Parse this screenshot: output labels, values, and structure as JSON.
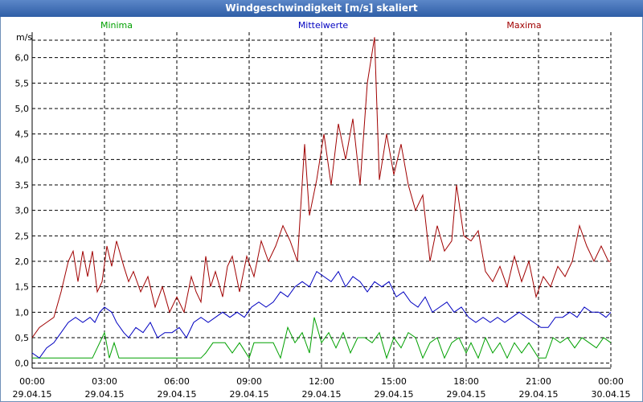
{
  "window": {
    "title": "Windgeschwindigkeit [m/s] skaliert"
  },
  "chart_data": {
    "type": "line",
    "title": "Windgeschwindigkeit [m/s] skaliert",
    "ylabel": "m/s",
    "ylim": [
      -0.1,
      6.5
    ],
    "xlim_hours": [
      0,
      24
    ],
    "y_ticks": [
      "0,0",
      "0,5",
      "1,0",
      "1,5",
      "2,0",
      "2,5",
      "3,0",
      "3,5",
      "4,0",
      "4,5",
      "5,0",
      "5,5",
      "6,0"
    ],
    "x_ticks": [
      {
        "time": "00:00",
        "date": "29.04.15"
      },
      {
        "time": "03:00",
        "date": "29.04.15"
      },
      {
        "time": "06:00",
        "date": "29.04.15"
      },
      {
        "time": "09:00",
        "date": "29.04.15"
      },
      {
        "time": "12:00",
        "date": "29.04.15"
      },
      {
        "time": "15:00",
        "date": "29.04.15"
      },
      {
        "time": "18:00",
        "date": "29.04.15"
      },
      {
        "time": "21:00",
        "date": "29.04.15"
      },
      {
        "time": "00:00",
        "date": "30.04.15"
      }
    ],
    "grid": true,
    "legend_position": "top",
    "colors": {
      "Minima": "#00a000",
      "Mittelwerte": "#0000c0",
      "Maxima": "#a00000"
    },
    "series": [
      {
        "name": "Minima",
        "points": [
          [
            0,
            0.1
          ],
          [
            0.5,
            0.1
          ],
          [
            1,
            0.1
          ],
          [
            1.5,
            0.1
          ],
          [
            2,
            0.1
          ],
          [
            2.5,
            0.1
          ],
          [
            2.7,
            0.3
          ],
          [
            3,
            0.6
          ],
          [
            3.2,
            0.1
          ],
          [
            3.4,
            0.4
          ],
          [
            3.6,
            0.1
          ],
          [
            4,
            0.1
          ],
          [
            5,
            0.1
          ],
          [
            6,
            0.1
          ],
          [
            7,
            0.1
          ],
          [
            7.2,
            0.2
          ],
          [
            7.5,
            0.4
          ],
          [
            8,
            0.4
          ],
          [
            8.3,
            0.2
          ],
          [
            8.6,
            0.4
          ],
          [
            9,
            0.1
          ],
          [
            9.2,
            0.4
          ],
          [
            9.6,
            0.4
          ],
          [
            10,
            0.4
          ],
          [
            10.3,
            0.1
          ],
          [
            10.6,
            0.7
          ],
          [
            10.9,
            0.4
          ],
          [
            11.2,
            0.6
          ],
          [
            11.5,
            0.2
          ],
          [
            11.7,
            0.9
          ],
          [
            12,
            0.4
          ],
          [
            12.3,
            0.6
          ],
          [
            12.6,
            0.3
          ],
          [
            12.9,
            0.6
          ],
          [
            13.2,
            0.2
          ],
          [
            13.5,
            0.5
          ],
          [
            13.8,
            0.5
          ],
          [
            14.1,
            0.4
          ],
          [
            14.4,
            0.6
          ],
          [
            14.7,
            0.1
          ],
          [
            15,
            0.5
          ],
          [
            15.3,
            0.3
          ],
          [
            15.6,
            0.6
          ],
          [
            15.9,
            0.5
          ],
          [
            16.2,
            0.1
          ],
          [
            16.5,
            0.4
          ],
          [
            16.8,
            0.5
          ],
          [
            17.1,
            0.1
          ],
          [
            17.4,
            0.4
          ],
          [
            17.7,
            0.5
          ],
          [
            18,
            0.2
          ],
          [
            18.2,
            0.4
          ],
          [
            18.5,
            0.1
          ],
          [
            18.8,
            0.5
          ],
          [
            19.1,
            0.2
          ],
          [
            19.4,
            0.4
          ],
          [
            19.7,
            0.1
          ],
          [
            20,
            0.4
          ],
          [
            20.3,
            0.2
          ],
          [
            20.6,
            0.4
          ],
          [
            21,
            0.1
          ],
          [
            21.3,
            0.1
          ],
          [
            21.6,
            0.5
          ],
          [
            21.9,
            0.4
          ],
          [
            22.2,
            0.5
          ],
          [
            22.5,
            0.3
          ],
          [
            22.8,
            0.5
          ],
          [
            23.1,
            0.4
          ],
          [
            23.4,
            0.3
          ],
          [
            23.7,
            0.5
          ],
          [
            24,
            0.4
          ]
        ]
      },
      {
        "name": "Mittelwerte",
        "points": [
          [
            0,
            0.2
          ],
          [
            0.3,
            0.1
          ],
          [
            0.6,
            0.3
          ],
          [
            0.9,
            0.4
          ],
          [
            1.2,
            0.6
          ],
          [
            1.5,
            0.8
          ],
          [
            1.8,
            0.9
          ],
          [
            2.1,
            0.8
          ],
          [
            2.4,
            0.9
          ],
          [
            2.6,
            0.8
          ],
          [
            2.8,
            1.0
          ],
          [
            3,
            1.1
          ],
          [
            3.3,
            1.0
          ],
          [
            3.5,
            0.8
          ],
          [
            3.8,
            0.6
          ],
          [
            4,
            0.5
          ],
          [
            4.3,
            0.7
          ],
          [
            4.6,
            0.6
          ],
          [
            4.9,
            0.8
          ],
          [
            5.2,
            0.5
          ],
          [
            5.5,
            0.6
          ],
          [
            5.8,
            0.6
          ],
          [
            6.1,
            0.7
          ],
          [
            6.4,
            0.5
          ],
          [
            6.7,
            0.8
          ],
          [
            7,
            0.9
          ],
          [
            7.3,
            0.8
          ],
          [
            7.6,
            0.9
          ],
          [
            7.9,
            1.0
          ],
          [
            8.2,
            0.9
          ],
          [
            8.5,
            1.0
          ],
          [
            8.8,
            0.9
          ],
          [
            9.1,
            1.1
          ],
          [
            9.4,
            1.2
          ],
          [
            9.7,
            1.1
          ],
          [
            10,
            1.2
          ],
          [
            10.3,
            1.4
          ],
          [
            10.6,
            1.3
          ],
          [
            10.9,
            1.5
          ],
          [
            11.2,
            1.6
          ],
          [
            11.5,
            1.5
          ],
          [
            11.8,
            1.8
          ],
          [
            12.1,
            1.7
          ],
          [
            12.4,
            1.6
          ],
          [
            12.7,
            1.8
          ],
          [
            13,
            1.5
          ],
          [
            13.3,
            1.7
          ],
          [
            13.6,
            1.6
          ],
          [
            13.9,
            1.4
          ],
          [
            14.2,
            1.6
          ],
          [
            14.5,
            1.5
          ],
          [
            14.8,
            1.6
          ],
          [
            15.1,
            1.3
          ],
          [
            15.4,
            1.4
          ],
          [
            15.7,
            1.2
          ],
          [
            16,
            1.1
          ],
          [
            16.3,
            1.3
          ],
          [
            16.6,
            1.0
          ],
          [
            16.9,
            1.1
          ],
          [
            17.2,
            1.2
          ],
          [
            17.5,
            1.0
          ],
          [
            17.8,
            1.1
          ],
          [
            18.1,
            0.9
          ],
          [
            18.4,
            0.8
          ],
          [
            18.7,
            0.9
          ],
          [
            19,
            0.8
          ],
          [
            19.3,
            0.9
          ],
          [
            19.6,
            0.8
          ],
          [
            19.9,
            0.9
          ],
          [
            20.2,
            1.0
          ],
          [
            20.5,
            0.9
          ],
          [
            20.8,
            0.8
          ],
          [
            21.1,
            0.7
          ],
          [
            21.4,
            0.7
          ],
          [
            21.7,
            0.9
          ],
          [
            22,
            0.9
          ],
          [
            22.3,
            1.0
          ],
          [
            22.6,
            0.9
          ],
          [
            22.9,
            1.1
          ],
          [
            23.2,
            1.0
          ],
          [
            23.5,
            1.0
          ],
          [
            23.8,
            0.9
          ],
          [
            24,
            1.0
          ]
        ]
      },
      {
        "name": "Maxima",
        "points": [
          [
            0,
            0.5
          ],
          [
            0.3,
            0.7
          ],
          [
            0.6,
            0.8
          ],
          [
            0.9,
            0.9
          ],
          [
            1.2,
            1.4
          ],
          [
            1.5,
            2.0
          ],
          [
            1.7,
            2.2
          ],
          [
            1.9,
            1.6
          ],
          [
            2.1,
            2.2
          ],
          [
            2.3,
            1.7
          ],
          [
            2.5,
            2.2
          ],
          [
            2.7,
            1.4
          ],
          [
            2.9,
            1.6
          ],
          [
            3.1,
            2.3
          ],
          [
            3.3,
            1.9
          ],
          [
            3.5,
            2.4
          ],
          [
            3.8,
            1.9
          ],
          [
            4,
            1.6
          ],
          [
            4.2,
            1.8
          ],
          [
            4.5,
            1.4
          ],
          [
            4.8,
            1.7
          ],
          [
            5.1,
            1.1
          ],
          [
            5.4,
            1.5
          ],
          [
            5.7,
            1.0
          ],
          [
            6,
            1.3
          ],
          [
            6.3,
            1.0
          ],
          [
            6.6,
            1.7
          ],
          [
            6.8,
            1.4
          ],
          [
            7,
            1.2
          ],
          [
            7.2,
            2.1
          ],
          [
            7.4,
            1.5
          ],
          [
            7.6,
            1.8
          ],
          [
            7.9,
            1.3
          ],
          [
            8.1,
            1.9
          ],
          [
            8.3,
            2.1
          ],
          [
            8.6,
            1.4
          ],
          [
            8.9,
            2.1
          ],
          [
            9.2,
            1.7
          ],
          [
            9.5,
            2.4
          ],
          [
            9.8,
            2.0
          ],
          [
            10.1,
            2.3
          ],
          [
            10.4,
            2.7
          ],
          [
            10.7,
            2.4
          ],
          [
            11,
            2.0
          ],
          [
            11.3,
            4.3
          ],
          [
            11.5,
            2.9
          ],
          [
            11.8,
            3.6
          ],
          [
            12.1,
            4.5
          ],
          [
            12.4,
            3.5
          ],
          [
            12.7,
            4.7
          ],
          [
            13,
            4.0
          ],
          [
            13.3,
            4.8
          ],
          [
            13.6,
            3.5
          ],
          [
            13.9,
            5.5
          ],
          [
            14.2,
            6.4
          ],
          [
            14.4,
            3.6
          ],
          [
            14.7,
            4.5
          ],
          [
            15,
            3.7
          ],
          [
            15.3,
            4.3
          ],
          [
            15.6,
            3.5
          ],
          [
            15.9,
            3.0
          ],
          [
            16.2,
            3.3
          ],
          [
            16.5,
            2.0
          ],
          [
            16.8,
            2.7
          ],
          [
            17.1,
            2.2
          ],
          [
            17.4,
            2.4
          ],
          [
            17.6,
            3.5
          ],
          [
            17.9,
            2.5
          ],
          [
            18.2,
            2.4
          ],
          [
            18.5,
            2.6
          ],
          [
            18.8,
            1.8
          ],
          [
            19.1,
            1.6
          ],
          [
            19.4,
            1.9
          ],
          [
            19.7,
            1.5
          ],
          [
            20,
            2.1
          ],
          [
            20.3,
            1.6
          ],
          [
            20.6,
            2.0
          ],
          [
            20.9,
            1.3
          ],
          [
            21.2,
            1.7
          ],
          [
            21.5,
            1.5
          ],
          [
            21.8,
            1.9
          ],
          [
            22.1,
            1.7
          ],
          [
            22.4,
            2.0
          ],
          [
            22.7,
            2.7
          ],
          [
            23,
            2.3
          ],
          [
            23.3,
            2.0
          ],
          [
            23.6,
            2.3
          ],
          [
            23.9,
            2.0
          ],
          [
            24,
            2.0
          ]
        ]
      }
    ]
  }
}
